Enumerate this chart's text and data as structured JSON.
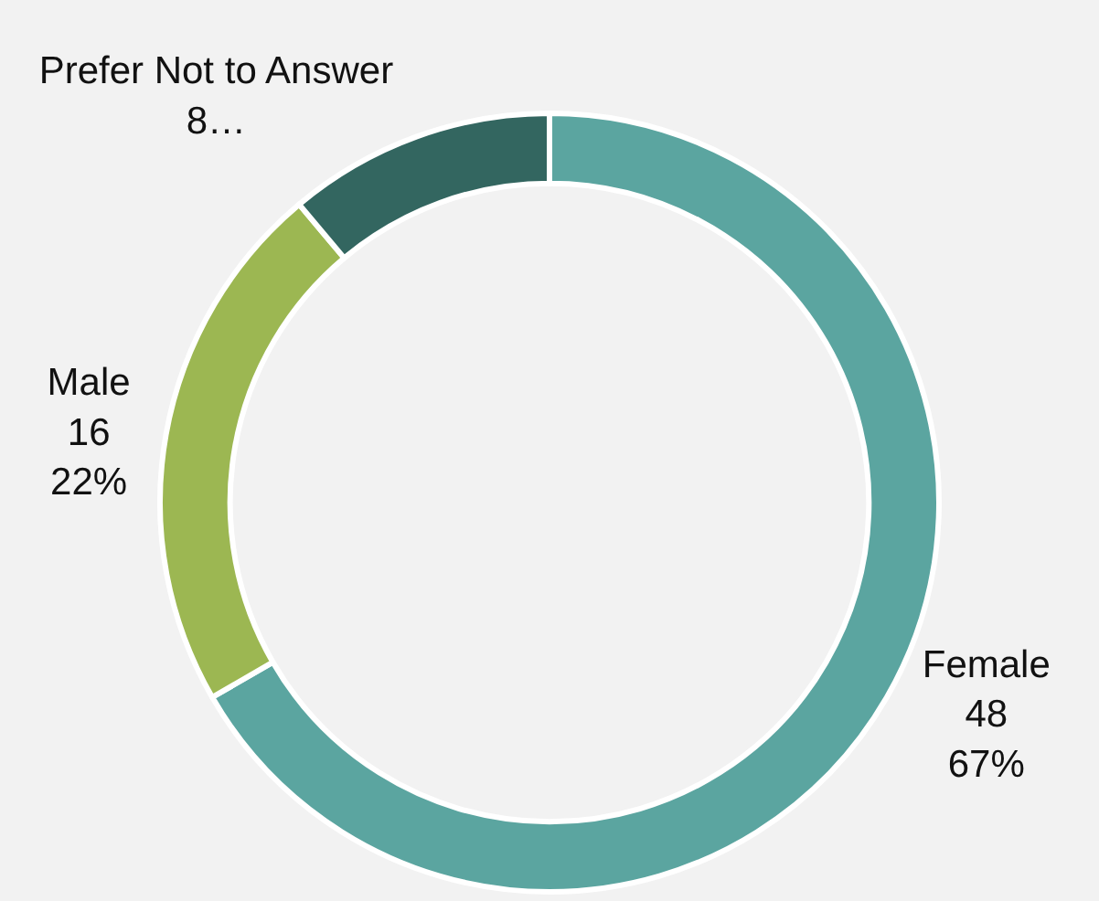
{
  "chart_data": {
    "type": "donut",
    "categories": [
      "Female",
      "Male",
      "Prefer Not to Answer"
    ],
    "values": [
      48,
      16,
      8
    ],
    "value_labels": [
      "48\n67%",
      "16\n22%",
      "8…"
    ],
    "colors": [
      "#5ba5a0",
      "#9cb752",
      "#336660"
    ],
    "legend": false
  }
}
